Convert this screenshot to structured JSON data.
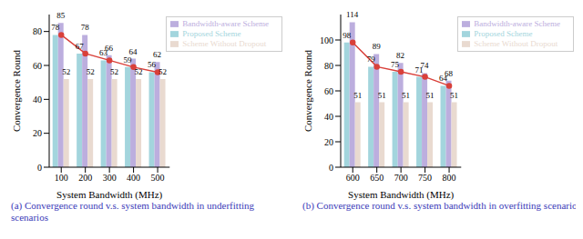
{
  "chart_data": [
    {
      "type": "bar",
      "title": "(a) Convergence round v.s. system bandwidth in underfitting scenarios",
      "x_label": "System Bandwidth (MHz)",
      "y_label": "Convergence Round",
      "categories": [
        "100",
        "200",
        "300",
        "400",
        "500"
      ],
      "ylim": [
        0,
        90
      ],
      "yticks": [
        0,
        20,
        40,
        60,
        80
      ],
      "grid": false,
      "legend": "upper right",
      "data_labels": true,
      "series": [
        {
          "name": "Proposed Scheme",
          "color": "#a3d5dd",
          "values": [
            78,
            67,
            63,
            59,
            56
          ]
        },
        {
          "name": "Bandwidth-aware Scheme",
          "color": "#bcaede",
          "values": [
            85,
            78,
            66,
            64,
            62
          ]
        },
        {
          "name": "Scheme Without Dropout",
          "color": "#e9dad0",
          "values": [
            52,
            52,
            52,
            52,
            52
          ]
        },
        {
          "type": "line",
          "color": "#d9403a",
          "marker": "circle",
          "values": [
            78,
            67,
            63,
            59,
            56
          ]
        }
      ]
    },
    {
      "type": "bar",
      "title": "(b) Convergence round v.s. system bandwidth in overfitting scenarios",
      "x_label": "System Bandwidth (MHz)",
      "y_label": "Convergence Round",
      "categories": [
        "600",
        "650",
        "700",
        "750",
        "800"
      ],
      "ylim": [
        0,
        120
      ],
      "yticks": [
        0,
        20,
        40,
        60,
        80,
        100
      ],
      "grid": false,
      "legend": "upper right",
      "data_labels": true,
      "series": [
        {
          "name": "Proposed Scheme",
          "color": "#a3d5dd",
          "values": [
            98,
            79,
            75,
            71,
            64
          ]
        },
        {
          "name": "Bandwidth-aware Scheme",
          "color": "#bcaede",
          "values": [
            114,
            89,
            82,
            74,
            68
          ]
        },
        {
          "name": "Scheme Without Dropout",
          "color": "#e9dad0",
          "values": [
            51,
            51,
            51,
            51,
            51
          ]
        },
        {
          "type": "line",
          "color": "#d9403a",
          "marker": "circle",
          "values": [
            98,
            79,
            75,
            71,
            64
          ]
        }
      ]
    }
  ]
}
